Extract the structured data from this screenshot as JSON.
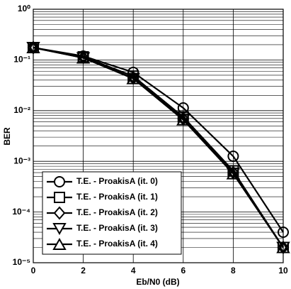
{
  "chart_data": {
    "type": "line",
    "x_label": "Eb/N0 (dB)",
    "y_label": "BER",
    "log_y": true,
    "grid": true,
    "minor_grid": true,
    "legend": "lower left",
    "x": [
      0,
      2,
      4,
      6,
      8,
      10
    ],
    "series": [
      {
        "name": "T.E. - ProakisA (it. 0)",
        "color": "#000000",
        "marker": "circle",
        "values": [
          0.175,
          0.119,
          0.057,
          0.0113,
          0.00126,
          4e-05
        ]
      },
      {
        "name": "T.E. - ProakisA (it. 1)",
        "color": "#000000",
        "marker": "square",
        "values": [
          0.175,
          0.115,
          0.048,
          0.0075,
          0.00065,
          2e-05
        ]
      },
      {
        "name": "T.E. - ProakisA (it. 2)",
        "color": "#000000",
        "marker": "diamond",
        "values": [
          0.175,
          0.112,
          0.044,
          0.0069,
          0.0006,
          2e-05
        ]
      },
      {
        "name": "T.E. - ProakisA (it. 3)",
        "color": "#000000",
        "marker": "triangle-down",
        "values": [
          0.175,
          0.11,
          0.043,
          0.0067,
          0.00058,
          2e-05
        ]
      },
      {
        "name": "T.E. - ProakisA (it. 4)",
        "color": "#000000",
        "marker": "triangle-up",
        "values": [
          0.175,
          0.11,
          0.043,
          0.0066,
          0.00057,
          2e-05
        ]
      }
    ],
    "xlim": [
      0,
      10
    ],
    "xticks": [
      0,
      2,
      4,
      6,
      8,
      10
    ],
    "ylim": [
      1e-05,
      1
    ],
    "yticks": [
      {
        "value": 1,
        "label": "10⁰"
      },
      {
        "value": 0.1,
        "label": "10⁻¹"
      },
      {
        "value": 0.01,
        "label": "10⁻²"
      },
      {
        "value": 0.001,
        "label": "10⁻³"
      },
      {
        "value": 0.0001,
        "label": "10⁻⁴"
      },
      {
        "value": 1e-05,
        "label": "10⁻⁵"
      }
    ]
  }
}
